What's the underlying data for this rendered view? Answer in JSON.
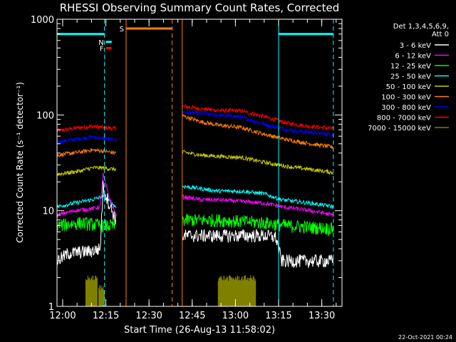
{
  "chart_data": {
    "type": "line",
    "title": "RHESSI Observing Summary Count Rates, Corrected",
    "xlabel": "Start Time (26-Aug-13 11:58:02)",
    "ylabel": "Corrected Count Rate (s⁻¹ detector⁻¹)",
    "x_unit": "minutes after 11:58:02",
    "xlim": [
      0,
      99
    ],
    "ylim": [
      1,
      1000
    ],
    "y_scale": "log",
    "x_ticks": [
      {
        "label": "12:00",
        "t": 1.97
      },
      {
        "label": "12:15",
        "t": 16.97
      },
      {
        "label": "12:30",
        "t": 31.97
      },
      {
        "label": "12:45",
        "t": 46.97
      },
      {
        "label": "13:00",
        "t": 61.97
      },
      {
        "label": "13:15",
        "t": 76.97
      },
      {
        "label": "13:30",
        "t": 91.97
      }
    ],
    "y_ticks": [
      {
        "label": "1",
        "v": 1
      },
      {
        "label": "10",
        "v": 10
      },
      {
        "label": "100",
        "v": 100
      },
      {
        "label": "1000",
        "v": 1000
      }
    ],
    "legend": {
      "placement": "right",
      "header": [
        "Det 1,3,4,5,6,9,",
        "Att 0"
      ],
      "entries": [
        {
          "label": "3 - 6 keV",
          "color": "#ffffff"
        },
        {
          "label": "6 - 12 keV",
          "color": "#ff00ff"
        },
        {
          "label": "12 - 25 keV",
          "color": "#00ff00"
        },
        {
          "label": "25 - 50 keV",
          "color": "#00ffff"
        },
        {
          "label": "50 - 100 keV",
          "color": "#cccc00"
        },
        {
          "label": "100 - 300 keV",
          "color": "#ff7f00"
        },
        {
          "label": "300 - 800 keV",
          "color": "#0000ff"
        },
        {
          "label": "800 - 7000 keV",
          "color": "#ff0000"
        },
        {
          "label": "7000 - 15000 keV",
          "color": "#808000"
        }
      ]
    },
    "segments": [
      [
        0,
        20.5
      ],
      [
        43.5,
        96
      ]
    ],
    "series": [
      {
        "color": "#ff0000",
        "points": [
          [
            0,
            68
          ],
          [
            8,
            74
          ],
          [
            12,
            76
          ],
          [
            16,
            74
          ],
          [
            20.5,
            72
          ],
          [
            43.5,
            123
          ],
          [
            50,
            116
          ],
          [
            56,
            112
          ],
          [
            64,
            110
          ],
          [
            72,
            96
          ],
          [
            80,
            82
          ],
          [
            88,
            76
          ],
          [
            96,
            72
          ]
        ]
      },
      {
        "color": "#0000ff",
        "points": [
          [
            0,
            52
          ],
          [
            8,
            57
          ],
          [
            12,
            59
          ],
          [
            16,
            57
          ],
          [
            20.5,
            54
          ],
          [
            43.5,
            108
          ],
          [
            50,
            103
          ],
          [
            56,
            100
          ],
          [
            64,
            95
          ],
          [
            72,
            80
          ],
          [
            80,
            70
          ],
          [
            88,
            66
          ],
          [
            96,
            62
          ]
        ]
      },
      {
        "color": "#ff7f00",
        "points": [
          [
            0,
            38
          ],
          [
            8,
            41
          ],
          [
            12,
            43
          ],
          [
            16,
            42
          ],
          [
            20.5,
            40
          ],
          [
            43.5,
            98
          ],
          [
            50,
            85
          ],
          [
            56,
            78
          ],
          [
            64,
            74
          ],
          [
            72,
            63
          ],
          [
            80,
            55
          ],
          [
            88,
            50
          ],
          [
            96,
            46
          ]
        ]
      },
      {
        "color": "#cccc00",
        "points": [
          [
            0,
            24
          ],
          [
            8,
            26
          ],
          [
            12,
            28
          ],
          [
            16,
            28
          ],
          [
            20.5,
            27
          ],
          [
            43.5,
            41
          ],
          [
            50,
            38
          ],
          [
            56,
            37
          ],
          [
            64,
            36
          ],
          [
            72,
            32
          ],
          [
            80,
            29
          ],
          [
            88,
            27
          ],
          [
            96,
            25
          ]
        ]
      },
      {
        "color": "#00ffff",
        "points": [
          [
            0,
            11
          ],
          [
            6,
            12
          ],
          [
            12,
            13
          ],
          [
            16,
            14
          ],
          [
            20.5,
            11
          ],
          [
            43.5,
            18
          ],
          [
            50,
            17
          ],
          [
            56,
            16
          ],
          [
            64,
            16
          ],
          [
            72,
            15
          ],
          [
            78,
            13
          ],
          [
            88,
            12
          ],
          [
            96,
            11
          ]
        ]
      },
      {
        "color": "#ff00ff",
        "points": [
          [
            0,
            9
          ],
          [
            6,
            10
          ],
          [
            12,
            10.5
          ],
          [
            15,
            11
          ],
          [
            16,
            24
          ],
          [
            18,
            14
          ],
          [
            20.5,
            9
          ],
          [
            43.5,
            14
          ],
          [
            50,
            13
          ],
          [
            56,
            13
          ],
          [
            64,
            12.5
          ],
          [
            72,
            12
          ],
          [
            78,
            11
          ],
          [
            88,
            10
          ],
          [
            96,
            9
          ]
        ]
      },
      {
        "color": "#00ff00",
        "points": [
          [
            0,
            7
          ],
          [
            8,
            7.5
          ],
          [
            16,
            7
          ],
          [
            20.5,
            7
          ],
          [
            43.5,
            8
          ],
          [
            56,
            8
          ],
          [
            72,
            7.5
          ],
          [
            80,
            7
          ],
          [
            96,
            6.5
          ]
        ]
      },
      {
        "color": "#ffffff",
        "points": [
          [
            0,
            3
          ],
          [
            4,
            3.6
          ],
          [
            12,
            3.8
          ],
          [
            15,
            4
          ],
          [
            16,
            18
          ],
          [
            18,
            12
          ],
          [
            20.5,
            8
          ],
          [
            43.5,
            5.5
          ],
          [
            56,
            5.5
          ],
          [
            72,
            5.5
          ],
          [
            76,
            5.3
          ],
          [
            78,
            3
          ],
          [
            88,
            3
          ],
          [
            96,
            3
          ]
        ]
      },
      {
        "color": "#808000",
        "bars": [
          [
            10,
            14,
            2.0
          ],
          [
            14.5,
            16.5,
            1.6
          ],
          [
            56,
            69,
            2.0
          ]
        ]
      }
    ],
    "flags": [
      {
        "label": "",
        "t0": 0,
        "t1": 16.5,
        "v": 700,
        "color": "#00ffff"
      },
      {
        "label": "N",
        "t0": 17,
        "t1": 19,
        "v": 580,
        "color": "#00ffff"
      },
      {
        "label": "F",
        "t0": 17,
        "t1": 19,
        "v": 500,
        "color": "#ff0000"
      },
      {
        "label": "S",
        "t0": 24,
        "t1": 40,
        "v": 800,
        "color": "#ff7f00"
      },
      {
        "label": "",
        "t0": 77,
        "t1": 96,
        "v": 700,
        "color": "#00ffff"
      }
    ],
    "vlines": [
      {
        "t": 16.5,
        "color": "#00ffff",
        "style": "dashed"
      },
      {
        "t": 24,
        "color": "#ff7f00",
        "style": "solid"
      },
      {
        "t": 40,
        "color": "#ff7f00",
        "style": "dashed"
      },
      {
        "t": 43.5,
        "color": "#ff7f00",
        "style": "solid"
      },
      {
        "t": 77,
        "color": "#00ffff",
        "style": "solid"
      },
      {
        "t": 96,
        "color": "#00ffff",
        "style": "dashed"
      }
    ],
    "timestamp": "22-Oct-2021 00:24"
  }
}
